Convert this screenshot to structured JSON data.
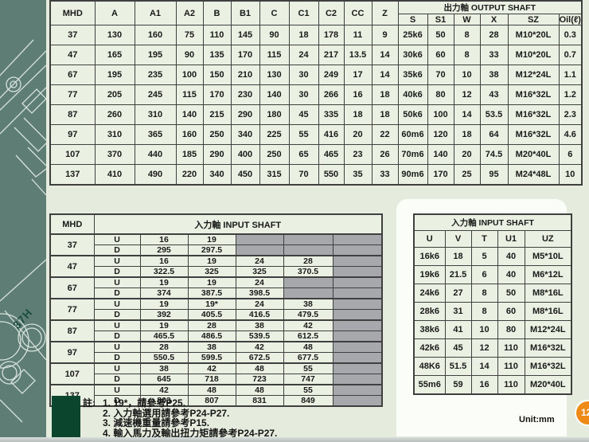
{
  "page": {
    "unit_label": "Unit:mm",
    "badge": "12",
    "side_label": "37H"
  },
  "top_table": {
    "col_headers": [
      "MHD",
      "A",
      "A1",
      "A2",
      "B",
      "B1",
      "C",
      "C1",
      "C2",
      "CC",
      "Z"
    ],
    "output_shaft_header": "出力軸  OUTPUT SHAFT",
    "output_cols": [
      "S",
      "S1",
      "W",
      "X",
      "SZ",
      "Oil(ℓ)"
    ],
    "rows": [
      {
        "mhd": "37",
        "values": [
          "130",
          "160",
          "75",
          "110",
          "145",
          "90",
          "18",
          "178",
          "11",
          "9",
          "25k6",
          "50",
          "8",
          "28",
          "M10*20L",
          "0.3"
        ]
      },
      {
        "mhd": "47",
        "values": [
          "165",
          "195",
          "90",
          "135",
          "170",
          "115",
          "24",
          "217",
          "13.5",
          "14",
          "30k6",
          "60",
          "8",
          "33",
          "M10*20L",
          "0.7"
        ]
      },
      {
        "mhd": "67",
        "values": [
          "195",
          "235",
          "100",
          "150",
          "210",
          "130",
          "30",
          "249",
          "17",
          "14",
          "35k6",
          "70",
          "10",
          "38",
          "M12*24L",
          "1.1"
        ]
      },
      {
        "mhd": "77",
        "values": [
          "205",
          "245",
          "115",
          "170",
          "230",
          "140",
          "30",
          "266",
          "16",
          "18",
          "40k6",
          "80",
          "12",
          "43",
          "M16*32L",
          "1.2"
        ]
      },
      {
        "mhd": "87",
        "values": [
          "260",
          "310",
          "140",
          "215",
          "290",
          "180",
          "45",
          "335",
          "18",
          "18",
          "50k6",
          "100",
          "14",
          "53.5",
          "M16*32L",
          "2.3"
        ]
      },
      {
        "mhd": "97",
        "values": [
          "310",
          "365",
          "160",
          "250",
          "340",
          "225",
          "55",
          "416",
          "20",
          "22",
          "60m6",
          "120",
          "18",
          "64",
          "M16*32L",
          "4.6"
        ]
      },
      {
        "mhd": "107",
        "values": [
          "370",
          "440",
          "185",
          "290",
          "400",
          "250",
          "65",
          "465",
          "23",
          "26",
          "70m6",
          "140",
          "20",
          "74.5",
          "M20*40L",
          "6"
        ]
      },
      {
        "mhd": "137",
        "values": [
          "410",
          "490",
          "220",
          "340",
          "450",
          "315",
          "70",
          "550",
          "35",
          "33",
          "90m6",
          "170",
          "25",
          "95",
          "M24*48L",
          "10"
        ]
      }
    ]
  },
  "input_table_left": {
    "mhd_header": "MHD",
    "title": "入力軸  INPUT SHAFT",
    "row_labels": [
      "U",
      "D"
    ],
    "groups": [
      {
        "mhd": "37",
        "u": [
          "16",
          "19",
          "",
          "",
          ""
        ],
        "d": [
          "295",
          "297.5",
          "",
          "",
          ""
        ]
      },
      {
        "mhd": "47",
        "u": [
          "16",
          "19",
          "24",
          "28",
          ""
        ],
        "d": [
          "322.5",
          "325",
          "325",
          "370.5",
          ""
        ]
      },
      {
        "mhd": "67",
        "u": [
          "19",
          "19",
          "24",
          "",
          ""
        ],
        "d": [
          "374",
          "387.5",
          "398.5",
          "",
          ""
        ]
      },
      {
        "mhd": "77",
        "u": [
          "19",
          "19*",
          "24",
          "38",
          ""
        ],
        "d": [
          "392",
          "405.5",
          "416.5",
          "479.5",
          ""
        ]
      },
      {
        "mhd": "87",
        "u": [
          "19",
          "28",
          "38",
          "42",
          ""
        ],
        "d": [
          "465.5",
          "486.5",
          "539.5",
          "612.5",
          ""
        ]
      },
      {
        "mhd": "97",
        "u": [
          "28",
          "38",
          "42",
          "48",
          ""
        ],
        "d": [
          "550.5",
          "599.5",
          "672.5",
          "677.5",
          ""
        ]
      },
      {
        "mhd": "107",
        "u": [
          "38",
          "42",
          "48",
          "55",
          ""
        ],
        "d": [
          "645",
          "718",
          "723",
          "747",
          ""
        ]
      },
      {
        "mhd": "137",
        "u": [
          "42",
          "48",
          "48",
          "55",
          ""
        ],
        "d": [
          "803",
          "807",
          "831",
          "849",
          ""
        ]
      }
    ]
  },
  "input_table_right": {
    "title": "入力軸  INPUT SHAFT",
    "col_headers": [
      "U",
      "V",
      "T",
      "U1",
      "UZ"
    ],
    "rows": [
      [
        "16k6",
        "18",
        "5",
        "40",
        "M5*10L"
      ],
      [
        "19k6",
        "21.5",
        "6",
        "40",
        "M6*12L"
      ],
      [
        "24k6",
        "27",
        "8",
        "50",
        "M8*16L"
      ],
      [
        "28k6",
        "31",
        "8",
        "60",
        "M8*16L"
      ],
      [
        "38k6",
        "41",
        "10",
        "80",
        "M12*24L"
      ],
      [
        "42k6",
        "45",
        "12",
        "110",
        "M16*32L"
      ],
      [
        "48K6",
        "51.5",
        "14",
        "110",
        "M16*32L"
      ],
      [
        "55m6",
        "59",
        "16",
        "110",
        "M20*40L"
      ]
    ]
  },
  "notes": {
    "prefix": "註:",
    "lines": [
      "1. 19*，請參考P25.",
      "2. 入力軸選用請參考P24-P27.",
      "3. 減速機重量請參考P15.",
      "4. 輸入馬力及輸出扭力矩請參考P24-P27."
    ]
  }
}
